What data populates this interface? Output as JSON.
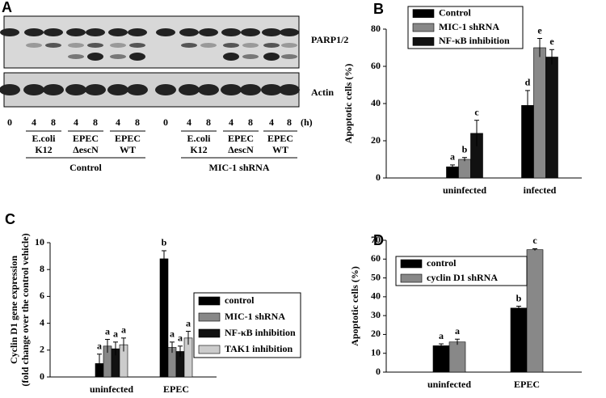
{
  "blot": {
    "label": "A",
    "bands": [
      "PARP1/2",
      "Actin"
    ],
    "lanes": [
      "0",
      "4",
      "8",
      "4",
      "8",
      "4",
      "8",
      "0",
      "4",
      "8",
      "4",
      "8",
      "4",
      "8"
    ],
    "unit": "(h)",
    "groups": [
      [
        "E.coli",
        "K12"
      ],
      [
        "EPEC",
        "ΔescN"
      ],
      [
        "EPEC",
        "WT"
      ],
      [
        "E.coli",
        "K12"
      ],
      [
        "EPEC",
        "ΔescN"
      ],
      [
        "EPEC",
        "WT"
      ]
    ],
    "conditions": [
      "Control",
      "MIC-1 shRNA"
    ]
  },
  "chart_data": [
    {
      "type": "bar",
      "label": "B",
      "ylabel": [
        "Apoptotic cells (%)"
      ],
      "categories": [
        "uninfected",
        "infected"
      ],
      "ylim": [
        0,
        80
      ],
      "yticks": [
        0,
        20,
        40,
        60,
        80
      ],
      "series": [
        {
          "name": "Control",
          "color": "#000000",
          "values": [
            6,
            39
          ],
          "errors": [
            1,
            8
          ],
          "letters": [
            "a",
            "d"
          ]
        },
        {
          "name": "MIC-1 shRNA",
          "color": "#888888",
          "values": [
            10,
            70
          ],
          "errors": [
            1,
            5
          ],
          "letters": [
            "b",
            "e"
          ]
        },
        {
          "name": "NF-κB inhibition",
          "color": "#111111",
          "values": [
            24,
            65
          ],
          "errors": [
            7,
            4
          ],
          "letters": [
            "c",
            "e"
          ]
        }
      ]
    },
    {
      "type": "bar",
      "label": "C",
      "ylabel": [
        "Cyclin D1 gene expression",
        "(fold change over the control vehicle)"
      ],
      "categories": [
        "uninfected",
        "EPEC"
      ],
      "ylim": [
        0,
        10
      ],
      "yticks": [
        0,
        2,
        4,
        6,
        8,
        10
      ],
      "series": [
        {
          "name": "control",
          "color": "#000000",
          "values": [
            1,
            8.8
          ],
          "errors": [
            0.7,
            0.6
          ],
          "letters": [
            "a",
            "b"
          ]
        },
        {
          "name": "MIC-1 shRNA",
          "color": "#888888",
          "values": [
            2.3,
            2.2
          ],
          "errors": [
            0.5,
            0.4
          ],
          "letters": [
            "a",
            "a"
          ]
        },
        {
          "name": "NF-κB inhibition",
          "color": "#111111",
          "values": [
            2.1,
            1.9
          ],
          "errors": [
            0.5,
            0.4
          ],
          "letters": [
            "a",
            "a"
          ]
        },
        {
          "name": "TAK1 inhibition",
          "color": "#cccccc",
          "values": [
            2.4,
            2.9
          ],
          "errors": [
            0.5,
            0.5
          ],
          "letters": [
            "a",
            "a"
          ]
        }
      ]
    },
    {
      "type": "bar",
      "label": "D",
      "ylabel": [
        "Apoptotic cells (%)"
      ],
      "categories": [
        "uninfected",
        "EPEC"
      ],
      "ylim": [
        0,
        70
      ],
      "yticks": [
        0,
        10,
        20,
        30,
        40,
        50,
        60,
        70
      ],
      "series": [
        {
          "name": "control",
          "color": "#000000",
          "values": [
            14,
            34
          ],
          "errors": [
            1,
            1
          ],
          "letters": [
            "a",
            "b"
          ]
        },
        {
          "name": "cyclin D1 shRNA",
          "color": "#888888",
          "values": [
            16,
            65
          ],
          "errors": [
            1.5,
            0.5
          ],
          "letters": [
            "a",
            "c"
          ]
        }
      ]
    }
  ]
}
